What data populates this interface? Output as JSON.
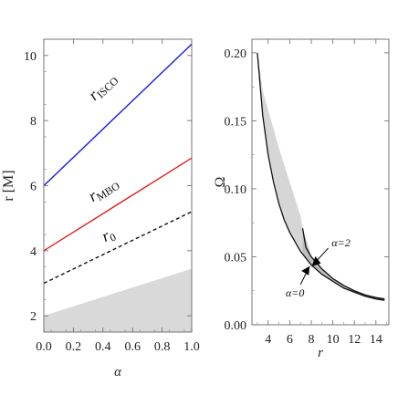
{
  "chart_data": [
    {
      "type": "line",
      "xlabel": "α",
      "ylabel": "r [M]",
      "xlim": [
        0.0,
        1.0
      ],
      "ylim": [
        1.5,
        10.5
      ],
      "grid": false,
      "xticks": [
        "0.0",
        "0.2",
        "0.4",
        "0.6",
        "0.8",
        "1.0"
      ],
      "xtick_values": [
        0.0,
        0.2,
        0.4,
        0.6,
        0.8,
        1.0
      ],
      "yticks": [
        "2",
        "4",
        "6",
        "8",
        "10"
      ],
      "ytick_values": [
        2,
        4,
        6,
        8,
        10
      ],
      "series": [
        {
          "name": "r",
          "sub": "ISCO",
          "color": "#1a1adf",
          "style": "solid",
          "x": [
            0.0,
            1.0
          ],
          "y": [
            6.0,
            10.35
          ]
        },
        {
          "name": "r",
          "sub": "MBO",
          "color": "#e02020",
          "style": "solid",
          "x": [
            0.0,
            1.0
          ],
          "y": [
            4.0,
            6.85
          ]
        },
        {
          "name": "r",
          "sub": "0",
          "color": "#111111",
          "style": "dashed",
          "x": [
            0.0,
            1.0
          ],
          "y": [
            3.0,
            5.2
          ]
        }
      ],
      "shaded_region": {
        "color": "#d9d9d9",
        "x": [
          0.0,
          1.0
        ],
        "upper": [
          2.0,
          3.45
        ],
        "lower": [
          1.5,
          1.5
        ]
      }
    },
    {
      "type": "line",
      "xlabel": "r",
      "ylabel": "Ω",
      "xlim": [
        2.5,
        15.2
      ],
      "ylim": [
        0.0,
        0.21
      ],
      "grid": false,
      "xticks": [
        "4",
        "6",
        "8",
        "10",
        "12",
        "14"
      ],
      "xtick_values": [
        4,
        6,
        8,
        10,
        12,
        14
      ],
      "yticks": [
        "0.00",
        "0.05",
        "0.10",
        "0.15",
        "0.20"
      ],
      "ytick_values": [
        0.0,
        0.05,
        0.1,
        0.15,
        0.2
      ],
      "series": [
        {
          "name": "α=0",
          "color": "#111111",
          "x": [
            3.0,
            3.5,
            4.0,
            4.5,
            5.0,
            5.5,
            6.0,
            7.0,
            8.0,
            9.0,
            10.0,
            11.0,
            12.0,
            13.0,
            14.0,
            14.8
          ],
          "y": [
            0.2,
            0.154,
            0.125,
            0.105,
            0.089,
            0.077,
            0.068,
            0.054,
            0.044,
            0.037,
            0.032,
            0.027,
            0.024,
            0.021,
            0.019,
            0.018
          ]
        },
        {
          "name": "α=2",
          "color": "#111111",
          "x": [
            7.2,
            7.5,
            8.0,
            9.0,
            10.0,
            11.0,
            12.0,
            13.0,
            14.0,
            14.8
          ],
          "y": [
            0.071,
            0.057,
            0.05,
            0.041,
            0.034,
            0.029,
            0.025,
            0.022,
            0.02,
            0.019
          ]
        }
      ],
      "shaded_region": {
        "color": "#d6d6d6",
        "x": [
          3.1,
          3.5,
          4.0,
          5.0,
          6.0,
          7.0,
          7.2
        ],
        "upper": [
          0.197,
          0.172,
          0.158,
          0.13,
          0.105,
          0.08,
          0.072
        ],
        "lower": [
          0.19,
          0.154,
          0.125,
          0.089,
          0.068,
          0.054,
          0.052
        ]
      },
      "shaded_region_2": {
        "color": "#bdbdbd",
        "x": [
          7.2,
          8.0,
          9.0,
          10.0,
          11.0,
          12.0,
          13.0,
          14.0,
          14.8
        ],
        "upper": [
          0.071,
          0.05,
          0.041,
          0.034,
          0.029,
          0.025,
          0.022,
          0.02,
          0.019
        ],
        "lower": [
          0.052,
          0.044,
          0.037,
          0.032,
          0.027,
          0.024,
          0.021,
          0.019,
          0.018
        ]
      },
      "annotations": [
        {
          "text": "α=0",
          "at": [
            7.85,
            0.043
          ]
        },
        {
          "text": "α=2",
          "at": [
            8.05,
            0.043
          ]
        }
      ]
    }
  ]
}
